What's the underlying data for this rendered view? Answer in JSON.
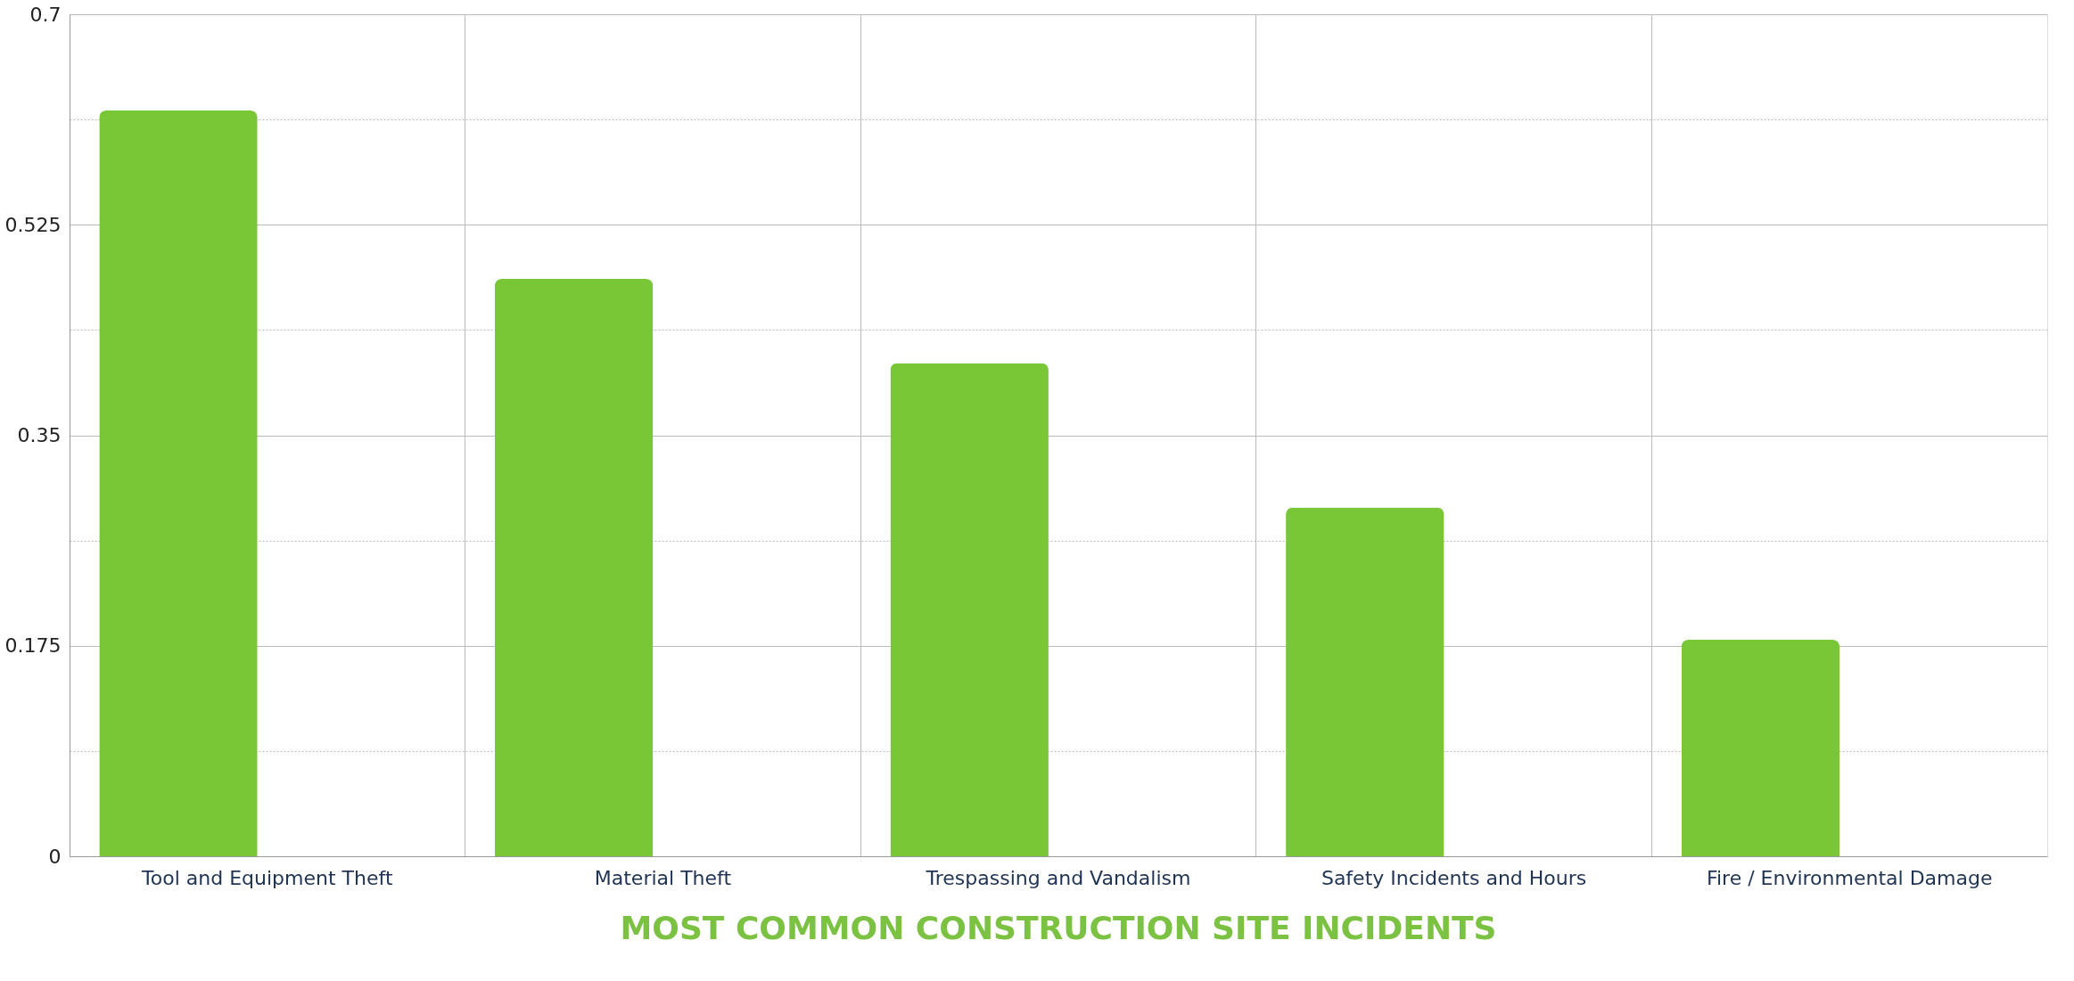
{
  "chart_data": {
    "type": "bar",
    "title": "MOST COMMON CONSTRUCTION SITE INCIDENTS",
    "categories": [
      "Tool and Equipment Theft",
      "Material Theft",
      "Trespassing and Vandalism",
      "Safety Incidents and Hours",
      "Fire / Environmental Damage"
    ],
    "values": [
      0.62,
      0.48,
      0.41,
      0.29,
      0.18
    ],
    "color": "#79c736",
    "ylim": [
      0,
      0.7
    ],
    "yticks": [
      0,
      {
        "value": 0.0875,
        "label": null
      },
      0.175,
      {
        "value": 0.2625,
        "label": null
      },
      0.35,
      {
        "value": 0.4375,
        "label": null
      },
      0.525,
      {
        "value": 0.6125,
        "label": null
      },
      0.7
    ],
    "grid": true
  }
}
